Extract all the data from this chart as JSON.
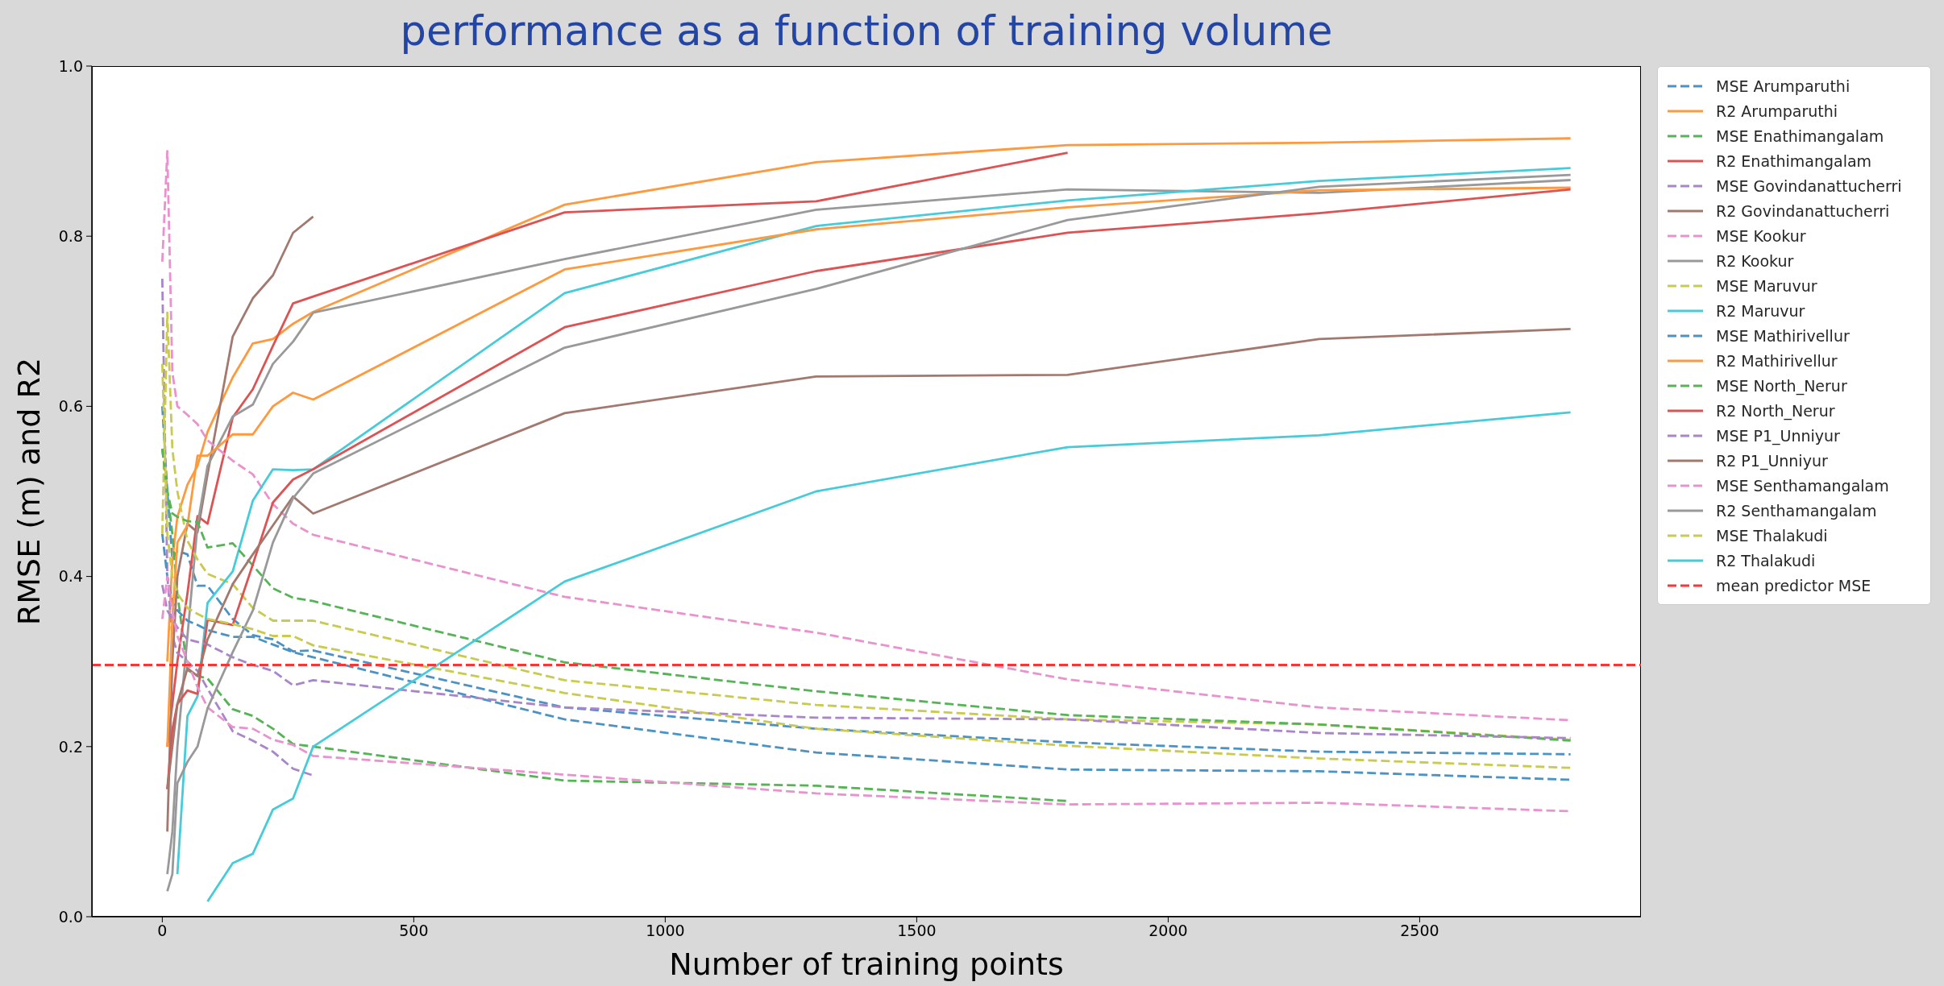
{
  "chart_data": {
    "type": "line",
    "title": "performance as a function of training volume",
    "xlabel": "Number of training points",
    "ylabel": "RMSE (m) and R2",
    "x": [
      0,
      10,
      20,
      30,
      50,
      70,
      90,
      140,
      180,
      220,
      260,
      300,
      800,
      1300,
      1800,
      2300,
      2800
    ],
    "series": [
      {
        "name": "MSE Arumparuthi",
        "color": "#4c92c3",
        "line_style": "dashed",
        "values": [
          0.6,
          0.5,
          0.42,
          0.43,
          0.426,
          0.389,
          0.389,
          0.35,
          0.331,
          0.326,
          0.312,
          0.313,
          0.246,
          0.221,
          0.205,
          0.194,
          0.191
        ]
      },
      {
        "name": "R2 Arumparuthi",
        "color": "#ff993e",
        "line_style": "solid",
        "values": [
          null,
          0.3,
          0.42,
          0.47,
          0.508,
          0.53,
          0.57,
          0.634,
          0.674,
          0.679,
          0.697,
          0.711,
          0.837,
          0.887,
          0.907,
          0.91,
          0.915
        ]
      },
      {
        "name": "MSE Enathimangalam",
        "color": "#56b356",
        "line_style": "dashed",
        "values": [
          0.55,
          0.5,
          0.45,
          0.38,
          0.29,
          0.283,
          0.28,
          0.244,
          0.236,
          0.221,
          0.203,
          0.2,
          0.16,
          0.154,
          0.136,
          null,
          null
        ]
      },
      {
        "name": "R2 Enathimangalam",
        "color": "#de5253",
        "line_style": "solid",
        "values": [
          null,
          0.2,
          0.25,
          0.3,
          0.38,
          0.471,
          0.462,
          0.587,
          0.62,
          0.671,
          0.721,
          0.729,
          0.828,
          0.841,
          0.898,
          null,
          null
        ]
      },
      {
        "name": "MSE Govindanattucherri",
        "color": "#a985ca",
        "line_style": "dashed",
        "values": [
          0.75,
          0.4,
          0.33,
          0.31,
          0.3,
          0.289,
          0.268,
          0.218,
          0.207,
          0.194,
          0.174,
          0.166,
          null,
          null,
          null,
          null,
          null
        ]
      },
      {
        "name": "R2 Govindanattucherri",
        "color": "#a3786f",
        "line_style": "solid",
        "values": [
          null,
          0.1,
          0.3,
          0.4,
          0.462,
          0.452,
          0.52,
          0.682,
          0.727,
          0.754,
          0.804,
          0.823,
          null,
          null,
          null,
          null,
          null
        ]
      },
      {
        "name": "MSE Kookur",
        "color": "#e992ce",
        "line_style": "dashed",
        "values": [
          0.77,
          0.9,
          0.64,
          0.6,
          0.59,
          0.579,
          0.56,
          0.536,
          0.52,
          0.485,
          0.462,
          0.449,
          0.376,
          0.334,
          0.279,
          0.246,
          0.231
        ]
      },
      {
        "name": "R2 Kookur",
        "color": "#999999",
        "line_style": "solid",
        "values": [
          null,
          0.05,
          0.1,
          0.2,
          0.33,
          0.46,
          0.53,
          0.588,
          0.602,
          0.65,
          0.676,
          0.71,
          0.773,
          0.831,
          0.855,
          0.851,
          0.866
        ]
      },
      {
        "name": "MSE Maruvur",
        "color": "#c9ca4e",
        "line_style": "dashed",
        "values": [
          0.45,
          0.71,
          0.55,
          0.5,
          0.442,
          0.42,
          0.403,
          0.391,
          0.363,
          0.348,
          0.348,
          0.348,
          0.278,
          0.249,
          0.232,
          0.226,
          0.208
        ]
      },
      {
        "name": "R2 Maruvur",
        "color": "#45cbd9",
        "line_style": "solid",
        "values": [
          null,
          null,
          null,
          0.05,
          0.236,
          0.259,
          0.369,
          0.406,
          0.489,
          0.526,
          0.525,
          0.526,
          0.733,
          0.812,
          0.842,
          0.865,
          0.88
        ]
      },
      {
        "name": "MSE Mathirivellur",
        "color": "#4c92c3",
        "line_style": "dashed",
        "values": [
          0.45,
          0.4,
          0.37,
          0.36,
          0.348,
          0.343,
          0.337,
          0.329,
          0.329,
          0.32,
          0.311,
          0.305,
          0.232,
          0.193,
          0.173,
          0.171,
          0.161
        ]
      },
      {
        "name": "R2 Mathirivellur",
        "color": "#ff993e",
        "line_style": "solid",
        "values": [
          null,
          0.2,
          0.35,
          0.44,
          0.46,
          0.542,
          0.542,
          0.567,
          0.567,
          0.6,
          0.616,
          0.608,
          0.761,
          0.808,
          0.834,
          0.854,
          0.857
        ]
      },
      {
        "name": "MSE North_Nerur",
        "color": "#56b356",
        "line_style": "dashed",
        "values": [
          0.55,
          0.5,
          0.474,
          0.47,
          0.465,
          0.464,
          0.434,
          0.439,
          0.413,
          0.386,
          0.375,
          0.371,
          0.299,
          0.265,
          0.237,
          0.226,
          0.207
        ]
      },
      {
        "name": "R2 North_Nerur",
        "color": "#de5253",
        "line_style": "solid",
        "values": [
          null,
          0.15,
          0.22,
          0.25,
          0.266,
          0.262,
          0.349,
          0.343,
          0.414,
          0.487,
          0.514,
          0.526,
          0.693,
          0.759,
          0.804,
          0.827,
          0.855
        ]
      },
      {
        "name": "MSE P1_Unniyur",
        "color": "#a985ca",
        "line_style": "dashed",
        "values": [
          0.39,
          0.36,
          0.35,
          0.34,
          0.326,
          0.323,
          0.32,
          0.305,
          0.296,
          0.289,
          0.272,
          0.278,
          0.246,
          0.234,
          0.232,
          0.216,
          0.21
        ]
      },
      {
        "name": "R2 P1_Unniyur",
        "color": "#a3786f",
        "line_style": "solid",
        "values": [
          null,
          0.15,
          0.2,
          0.25,
          0.292,
          0.283,
          0.326,
          0.391,
          0.426,
          0.46,
          0.494,
          0.474,
          0.592,
          0.635,
          0.637,
          0.679,
          0.691
        ]
      },
      {
        "name": "MSE Senthamangalam",
        "color": "#e992ce",
        "line_style": "dashed",
        "values": [
          0.35,
          0.4,
          0.36,
          0.33,
          0.3,
          0.27,
          0.246,
          0.223,
          0.221,
          0.208,
          0.202,
          0.189,
          0.167,
          0.145,
          0.132,
          0.134,
          0.124
        ]
      },
      {
        "name": "R2 Senthamangalam",
        "color": "#999999",
        "line_style": "solid",
        "values": [
          null,
          0.03,
          0.05,
          0.157,
          0.182,
          0.2,
          0.245,
          0.311,
          0.36,
          0.44,
          0.492,
          0.521,
          0.669,
          0.738,
          0.819,
          0.858,
          0.872
        ]
      },
      {
        "name": "MSE Thalakudi",
        "color": "#c9ca4e",
        "line_style": "dashed",
        "values": [
          0.65,
          0.45,
          0.4,
          0.38,
          0.363,
          0.356,
          0.35,
          0.344,
          0.338,
          0.33,
          0.33,
          0.319,
          0.263,
          0.221,
          0.201,
          0.186,
          0.175
        ]
      },
      {
        "name": "R2 Thalakudi",
        "color": "#45cbd9",
        "line_style": "solid",
        "values": [
          null,
          null,
          null,
          null,
          null,
          null,
          0.018,
          0.063,
          0.074,
          0.126,
          0.139,
          0.2,
          0.394,
          0.5,
          0.552,
          0.566,
          0.593
        ]
      }
    ],
    "ref_lines": [
      {
        "axis": "y",
        "value": 0.296,
        "label": "mean predictor MSE",
        "color": "#ff3333",
        "line_style": "dashed"
      }
    ],
    "xlim": [
      -140,
      2940
    ],
    "ylim": [
      0,
      1
    ],
    "xticks": [
      0,
      500,
      1000,
      1500,
      2000,
      2500
    ],
    "yticks": [
      {
        "value": 0,
        "label": "0.0"
      },
      0.2,
      0.4,
      0.6,
      0.8,
      {
        "value": 1,
        "label": "1.0"
      }
    ],
    "legend": "top right"
  }
}
